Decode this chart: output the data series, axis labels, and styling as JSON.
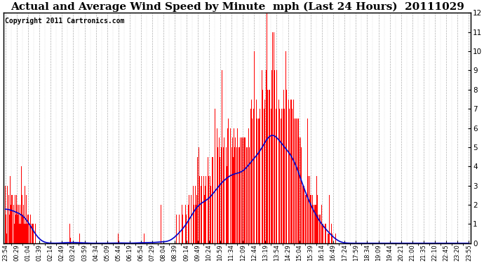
{
  "title": "Actual and Average Wind Speed by Minute  mph (Last 24 Hours)  20111029",
  "copyright": "Copyright 2011 Cartronics.com",
  "ylim": [
    0.0,
    12.0
  ],
  "yticks": [
    0.0,
    1.0,
    2.0,
    3.0,
    4.0,
    5.0,
    6.0,
    7.0,
    8.0,
    9.0,
    10.0,
    11.0,
    12.0
  ],
  "bar_color": "#ff0000",
  "line_color": "#0000cc",
  "background_color": "#ffffff",
  "grid_color": "#b0b0b0",
  "title_fontsize": 11,
  "copyright_fontsize": 7,
  "n_points": 1440,
  "xtick_labels": [
    "23:54",
    "00:29",
    "01:04",
    "01:39",
    "02:14",
    "02:49",
    "03:24",
    "03:59",
    "04:34",
    "05:09",
    "05:44",
    "06:19",
    "06:54",
    "07:29",
    "08:04",
    "08:39",
    "09:14",
    "09:49",
    "10:24",
    "10:59",
    "11:34",
    "12:09",
    "12:44",
    "13:19",
    "13:54",
    "14:29",
    "15:04",
    "15:39",
    "16:14",
    "16:49",
    "17:24",
    "17:59",
    "18:34",
    "19:09",
    "19:44",
    "20:21",
    "21:00",
    "21:35",
    "22:10",
    "22:45",
    "23:20",
    "23:55"
  ]
}
